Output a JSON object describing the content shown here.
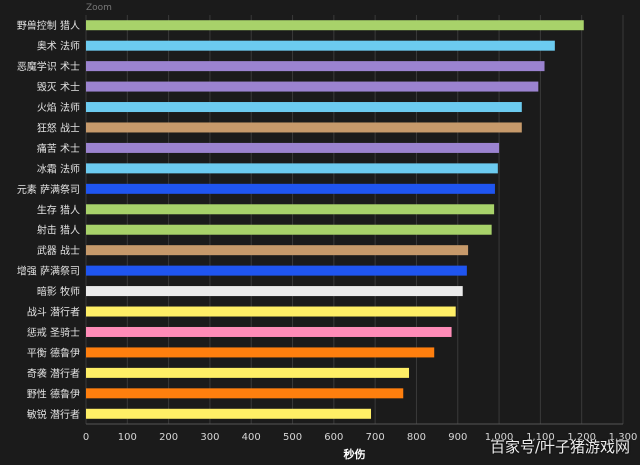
{
  "toolbar": {
    "zoom_label": "Zoom"
  },
  "watermark": "百家号/叶子猪游戏网",
  "chart_data": {
    "type": "bar",
    "orientation": "horizontal",
    "title": "",
    "xlabel": "秒伤",
    "ylabel": "",
    "xlim": [
      0,
      1300
    ],
    "xticks": [
      "0",
      "100",
      "200",
      "300",
      "400",
      "500",
      "600",
      "700",
      "800",
      "900",
      "1,000",
      "1,100",
      "1,200",
      "1,300"
    ],
    "xtick_values": [
      0,
      100,
      200,
      300,
      400,
      500,
      600,
      700,
      800,
      900,
      1000,
      1100,
      1200,
      1300
    ],
    "grid": true,
    "categories": [
      "野兽控制 猎人",
      "奥术 法师",
      "恶魔学识 术士",
      "毁灭 术士",
      "火焰 法师",
      "狂怒 战士",
      "痛苦 术士",
      "冰霜 法师",
      "元素 萨满祭司",
      "生存 猎人",
      "射击 猎人",
      "武器 战士",
      "增强 萨满祭司",
      "暗影 牧师",
      "战斗 潜行者",
      "惩戒 圣骑士",
      "平衡 德鲁伊",
      "奇袭 潜行者",
      "野性 德鲁伊",
      "敏锐 潜行者"
    ],
    "values": [
      1205,
      1135,
      1110,
      1095,
      1055,
      1055,
      1000,
      997,
      990,
      988,
      982,
      925,
      922,
      912,
      895,
      885,
      843,
      782,
      768,
      690
    ],
    "colors": [
      "#a8d26a",
      "#6ccbf0",
      "#9b83d0",
      "#9b83d0",
      "#6ccbf0",
      "#c79a6b",
      "#9b83d0",
      "#6ccbf0",
      "#1f55f0",
      "#a8d26a",
      "#a8d26a",
      "#c79a6b",
      "#1f55f0",
      "#ebebeb",
      "#ffef66",
      "#ff8cb8",
      "#ff7f0e",
      "#ffef66",
      "#ff7f0e",
      "#ffef66"
    ]
  }
}
